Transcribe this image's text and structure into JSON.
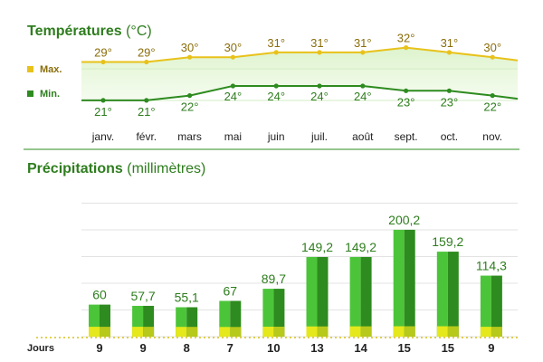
{
  "temperature": {
    "title": "Températures",
    "unit": "(°C)",
    "legend_max": "Max.",
    "legend_min": "Min.",
    "colors": {
      "max": "#e8c21a",
      "min": "#2e8b1f",
      "label_max": "#8a6d0a",
      "label_min": "#2e7d1e"
    }
  },
  "precipitation": {
    "title": "Précipitations",
    "unit": "(millimètres)",
    "days_label": "Jours",
    "colors": {
      "bar_light": "#4cc43a",
      "bar_dark": "#2e8b1f",
      "bar_bottom": "#e5e81a",
      "value_label": "#2e7d1e"
    }
  },
  "chart_data": [
    {
      "type": "line",
      "title": "Températures (°C)",
      "categories": [
        "janv.",
        "févr.",
        "mars",
        "mai",
        "juin",
        "juil.",
        "août",
        "sept.",
        "oct.",
        "nov."
      ],
      "series": [
        {
          "name": "Max.",
          "values": [
            29,
            29,
            30,
            30,
            31,
            31,
            31,
            32,
            31,
            30
          ]
        },
        {
          "name": "Min.",
          "values": [
            21,
            21,
            22,
            24,
            24,
            24,
            24,
            23,
            23,
            22
          ]
        }
      ],
      "value_suffix": "°",
      "legend": "left"
    },
    {
      "type": "bar",
      "title": "Précipitations (millimètres)",
      "categories": [
        "janv.",
        "févr.",
        "mars",
        "mai",
        "juin",
        "juil.",
        "août",
        "sept.",
        "oct.",
        "nov."
      ],
      "values": [
        60,
        57.7,
        55.1,
        67,
        89.7,
        149.2,
        149.2,
        200.2,
        159.2,
        114.3
      ],
      "value_labels": [
        "60",
        "57,7",
        "55,1",
        "67",
        "89,7",
        "149,2",
        "149,2",
        "200,2",
        "159,2",
        "114,3"
      ],
      "days": [
        9,
        9,
        8,
        7,
        10,
        13,
        14,
        15,
        15,
        9
      ],
      "grid": true
    }
  ]
}
